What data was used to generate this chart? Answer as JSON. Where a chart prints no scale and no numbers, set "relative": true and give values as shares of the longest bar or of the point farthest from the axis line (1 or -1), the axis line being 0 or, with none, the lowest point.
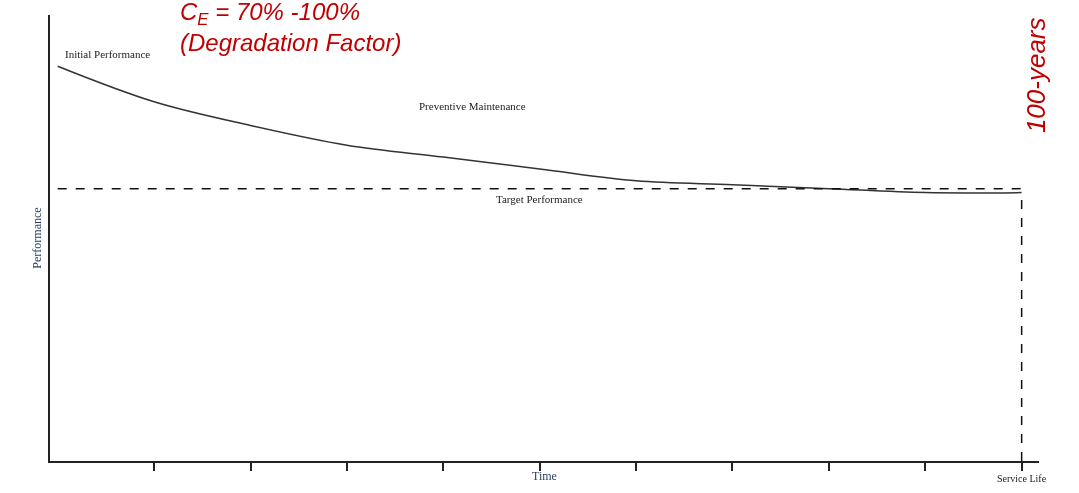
{
  "chart_data": {
    "type": "line",
    "relative": true,
    "xlabel": "Time",
    "ylabel": "Performance",
    "categories": [
      null,
      null,
      null,
      null,
      null,
      null,
      null,
      null,
      null,
      null,
      null
    ],
    "series": [
      {
        "color": "#333333",
        "values": [
          1.0,
          0.91,
          0.85,
          0.8,
          0.77,
          0.74,
          0.71,
          0.7,
          0.69,
          0.68,
          0.68
        ]
      }
    ],
    "ref_lines": [
      {
        "axis": "y",
        "value": 0.69,
        "label": "Target Performance",
        "line_style": "dashed",
        "color": "#111111"
      }
    ],
    "annotations": [
      "Initial Performance",
      "Preventive Maintenance",
      "C$_{E}$ = 70% -100%\n(Degradation Factor)",
      "100-years",
      "Service Life"
    ],
    "marker": "none",
    "line_style": "solid",
    "tick_labels": "x"
  }
}
